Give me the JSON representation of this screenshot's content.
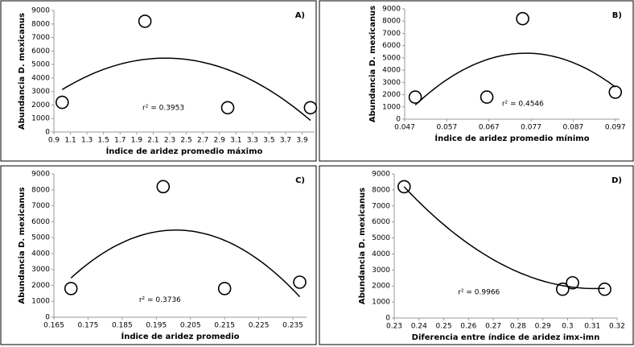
{
  "chart_data": [
    {
      "type": "scatter",
      "label": "A)",
      "xlabel": "Índice de aridez promedio máximo",
      "ylabel": "Abundancia D. mexicanus",
      "annotation": "r² = 0.3953",
      "x": [
        1.0,
        2.0,
        3.0,
        4.0
      ],
      "values": [
        2200,
        8200,
        1800,
        1800
      ],
      "color": "#000000",
      "xlim": [
        0.9,
        4.05
      ],
      "xticks": [
        0.9,
        1.1,
        1.3,
        1.5,
        1.7,
        1.9,
        2.1,
        2.3,
        2.5,
        2.7,
        2.9,
        3.1,
        3.3,
        3.5,
        3.7,
        3.9
      ],
      "ylim": [
        0,
        9000
      ],
      "yticks": [
        0,
        1000,
        2000,
        3000,
        4000,
        5000,
        6000,
        7000,
        8000,
        9000
      ]
    },
    {
      "type": "scatter",
      "label": "B)",
      "xlabel": "Índice de aridez promedio mínimo",
      "ylabel": "Abundancia D. mexicanus",
      "annotation": "r² = 0.4546",
      "x": [
        0.0495,
        0.0665,
        0.075,
        0.097
      ],
      "values": [
        1800,
        1800,
        8200,
        2200
      ],
      "color": "#000000",
      "xlim": [
        0.047,
        0.098
      ],
      "xticks": [
        0.047,
        0.057,
        0.067,
        0.077,
        0.087,
        0.097
      ],
      "ylim": [
        0,
        9000
      ],
      "yticks": [
        0,
        1000,
        2000,
        3000,
        4000,
        5000,
        6000,
        7000,
        8000,
        9000
      ]
    },
    {
      "type": "scatter",
      "label": "C)",
      "xlabel": "Índice de aridez  promedio",
      "ylabel": "Abundancia D. mexicanus",
      "annotation": "r² = 0.3736",
      "x": [
        0.17,
        0.197,
        0.215,
        0.237
      ],
      "values": [
        1800,
        8200,
        1800,
        2200
      ],
      "color": "#000000",
      "xlim": [
        0.165,
        0.239
      ],
      "xticks": [
        0.165,
        0.175,
        0.185,
        0.195,
        0.205,
        0.215,
        0.225,
        0.235
      ],
      "ylim": [
        0,
        9000
      ],
      "yticks": [
        0,
        1000,
        2000,
        3000,
        4000,
        5000,
        6000,
        7000,
        8000,
        9000
      ]
    },
    {
      "type": "scatter",
      "label": "D)",
      "xlabel": "Diferencia entre índice de aridez imx-imn",
      "ylabel": "Abundancia D. mexicanus",
      "annotation": "r² = 0.9966",
      "x": [
        0.234,
        0.298,
        0.302,
        0.315
      ],
      "values": [
        8200,
        1800,
        2200,
        1800
      ],
      "color": "#000000",
      "xlim": [
        0.23,
        0.32
      ],
      "xticks": [
        0.23,
        0.24,
        0.25,
        0.26,
        0.27,
        0.28,
        0.29,
        0.3,
        0.31,
        0.32
      ],
      "ylim": [
        0,
        9000
      ],
      "yticks": [
        0,
        1000,
        2000,
        3000,
        4000,
        5000,
        6000,
        7000,
        8000,
        9000
      ]
    }
  ]
}
